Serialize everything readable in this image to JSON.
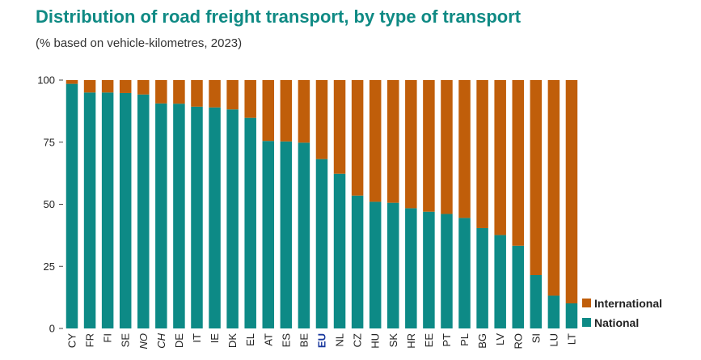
{
  "header": {
    "title": "Distribution of road freight transport, by type of transport",
    "subtitle": "(% based on vehicle-kilometres, 2023)"
  },
  "colors": {
    "national": "#0d8a86",
    "international": "#c05e0a",
    "highlight_label": "#1b3a9e",
    "title": "#0f8a84"
  },
  "chart_data": {
    "type": "bar",
    "stacked": true,
    "categories": [
      "CY",
      "FR",
      "FI",
      "SE",
      "NO",
      "CH",
      "DE",
      "IT",
      "IE",
      "DK",
      "EL",
      "AT",
      "ES",
      "BE",
      "EU",
      "NL",
      "CZ",
      "HU",
      "SK",
      "HR",
      "EE",
      "PT",
      "PL",
      "BG",
      "LV",
      "RO",
      "SI",
      "LU",
      "LT"
    ],
    "italic_categories": [
      "NO",
      "CH"
    ],
    "highlight_categories": [
      "EU"
    ],
    "series": [
      {
        "name": "National",
        "values": [
          98.5,
          95,
          95,
          94.8,
          94.2,
          90.6,
          90.5,
          89.3,
          89,
          88.2,
          84.8,
          75.5,
          75.3,
          74.8,
          68.2,
          62.3,
          53.5,
          51,
          50.6,
          48.4,
          47,
          46.1,
          44.5,
          40.4,
          37.6,
          33.3,
          21.5,
          13.2,
          10.1
        ]
      },
      {
        "name": "International",
        "values": [
          1.5,
          5,
          5,
          5.2,
          5.8,
          9.4,
          9.5,
          10.7,
          11,
          11.8,
          15.2,
          24.5,
          24.7,
          25.2,
          31.8,
          37.7,
          46.5,
          49,
          49.4,
          51.6,
          53,
          53.9,
          55.5,
          59.6,
          62.4,
          66.7,
          78.5,
          86.8,
          89.9
        ]
      }
    ],
    "yticks": [
      0,
      25,
      50,
      75,
      100
    ],
    "ylim": [
      0,
      100
    ],
    "grid": false,
    "legend_position": "bottom-right"
  },
  "legend": {
    "items": [
      {
        "label": "International",
        "color": "#c05e0a"
      },
      {
        "label": "National",
        "color": "#0d8a86"
      }
    ]
  }
}
